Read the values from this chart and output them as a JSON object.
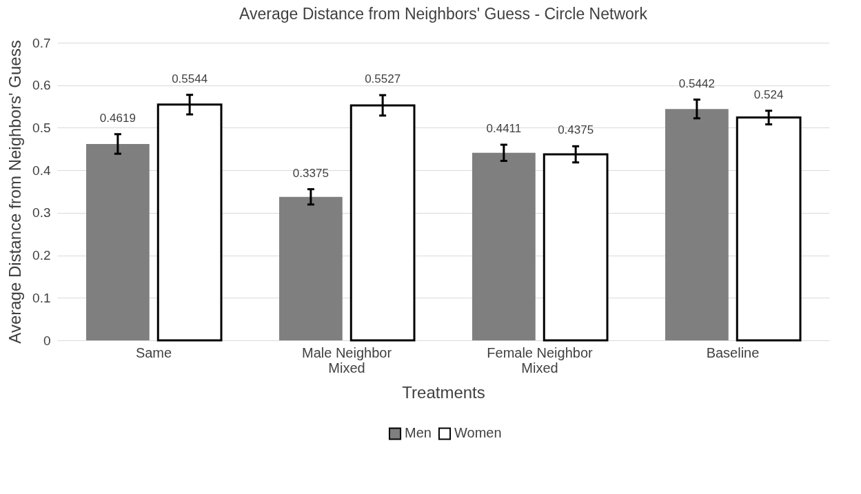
{
  "chart_data": {
    "type": "bar",
    "title": "Average Distance from Neighbors' Guess - Circle Network",
    "xlabel": "Treatments",
    "ylabel": "Average Distance from Neighbors' Guess",
    "categories": [
      "Same",
      "Male Neighbor\nMixed",
      "Female Neighbor\nMixed",
      "Baseline"
    ],
    "series": [
      {
        "name": "Men",
        "color": "#7f7f7f",
        "values": [
          0.4619,
          0.3375,
          0.4411,
          0.5442
        ],
        "errors": [
          0.023,
          0.018,
          0.019,
          0.022
        ]
      },
      {
        "name": "Women",
        "color": "#ffffff",
        "values": [
          0.5544,
          0.5527,
          0.4375,
          0.524
        ],
        "errors": [
          0.023,
          0.024,
          0.019,
          0.016
        ]
      }
    ],
    "ylim": [
      0,
      0.7
    ],
    "yticks": [
      0,
      0.1,
      0.2,
      0.3,
      0.4,
      0.5,
      0.6,
      0.7
    ],
    "grid": "y",
    "legend": "bottom",
    "data_labels": true
  }
}
